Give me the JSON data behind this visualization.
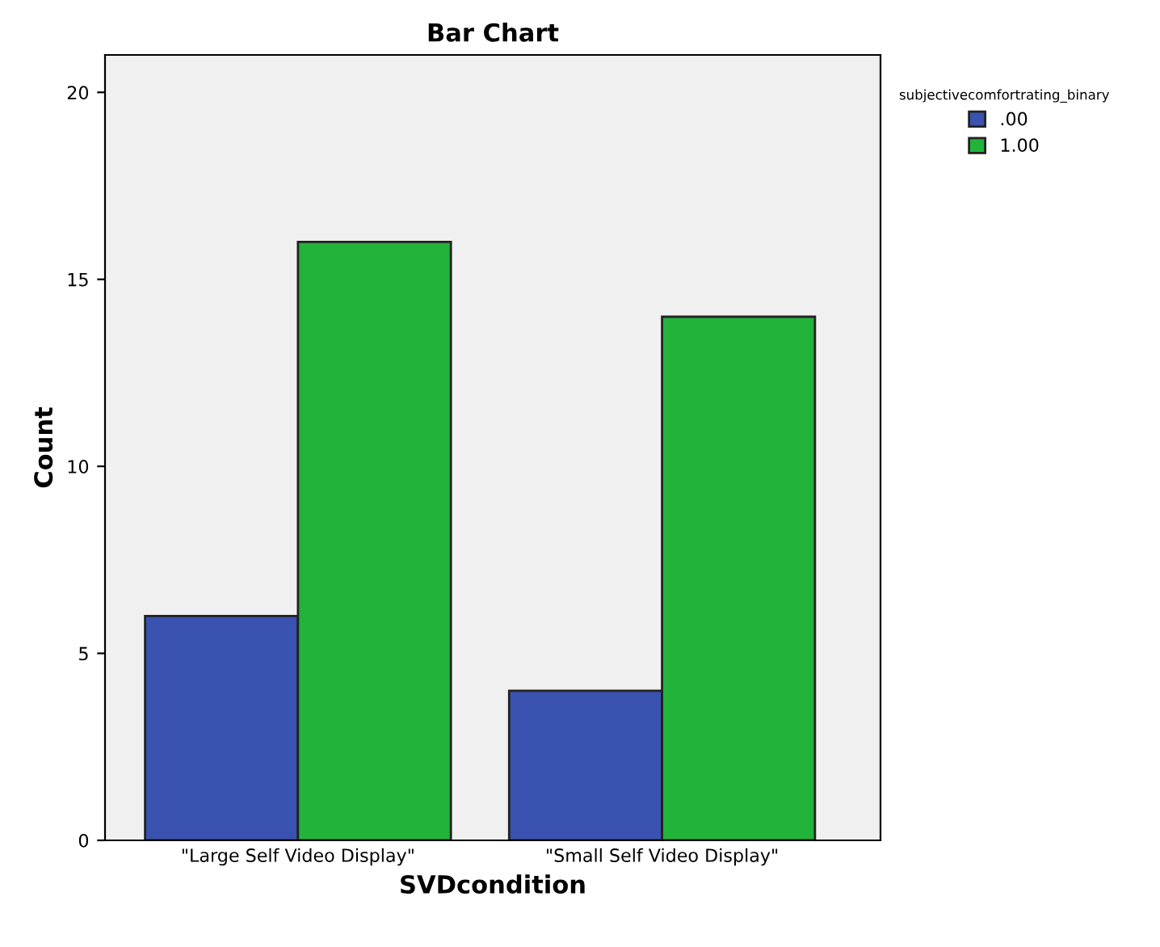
{
  "chart_data": {
    "type": "bar",
    "title": "Bar Chart",
    "xlabel": "SVDcondition",
    "ylabel": "Count",
    "legend_title": "subjectivecomfortrating_binary",
    "categories": [
      "\"Large Self Video Display\"",
      "\"Small Self Video Display\""
    ],
    "series": [
      {
        "name": ".00",
        "color": "#3a52b0",
        "values": [
          6,
          4
        ]
      },
      {
        "name": "1.00",
        "color": "#22b33a",
        "values": [
          16,
          14
        ]
      }
    ],
    "ylim": [
      0,
      21
    ],
    "yticks": [
      0,
      5,
      10,
      15,
      20
    ],
    "grid": false,
    "legend": "top right"
  }
}
